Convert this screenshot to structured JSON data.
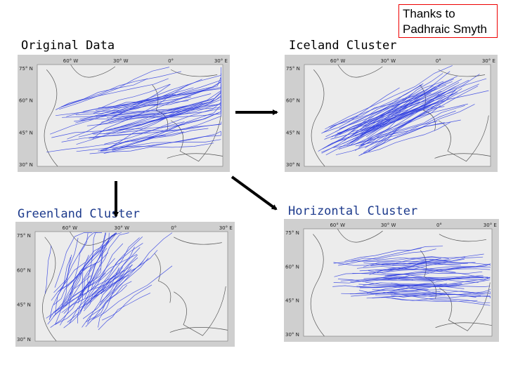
{
  "credit": {
    "lines": [
      "Thanks to",
      "Padhraic Smyth"
    ]
  },
  "panels": [
    {
      "title": "Original Data",
      "lon_labels": [
        "60° W",
        "30° W",
        "0°",
        "30° E"
      ],
      "lat_labels": [
        "75° N",
        "60° N",
        "45° N",
        "30° N"
      ]
    },
    {
      "title": "Iceland Cluster",
      "lon_labels": [
        "60° W",
        "30° W",
        "0°",
        "30° E"
      ],
      "lat_labels": [
        "75° N",
        "60° N",
        "45° N",
        "30° N"
      ]
    },
    {
      "title": "Greenland Cluster",
      "lon_labels": [
        "60° W",
        "30° W",
        "0°",
        "30° E"
      ],
      "lat_labels": [
        "75° N",
        "60° N",
        "45° N",
        "30° N"
      ]
    },
    {
      "title": "Horizontal Cluster",
      "lon_labels": [
        "60° W",
        "30° W",
        "0°",
        "30° E"
      ],
      "lat_labels": [
        "75° N",
        "60° N",
        "45° N",
        "30° N"
      ]
    }
  ]
}
